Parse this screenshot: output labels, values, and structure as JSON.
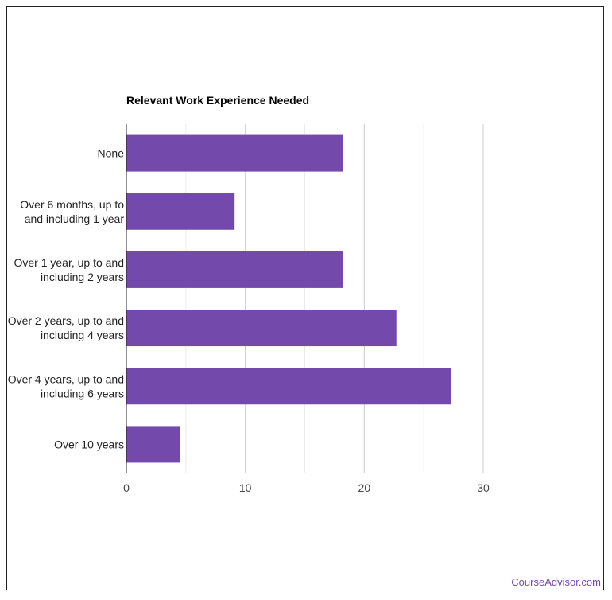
{
  "chart_data": {
    "type": "bar",
    "orientation": "horizontal",
    "title": "Relevant Work Experience Needed",
    "categories": [
      [
        "None"
      ],
      [
        "Over 6 months, up to",
        "and including 1 year"
      ],
      [
        "Over 1 year, up to and",
        "including 2 years"
      ],
      [
        "Over 2 years, up to and",
        "including 4 years"
      ],
      [
        "Over 4 years, up to and",
        "including 6 years"
      ],
      [
        "Over 10 years"
      ]
    ],
    "values": [
      18.2,
      9.1,
      18.2,
      22.7,
      27.3,
      4.5
    ],
    "xlabel": "",
    "ylabel": "",
    "xlim": [
      0,
      30
    ],
    "xticks": [
      "0",
      "10",
      "20",
      "30"
    ],
    "grid": true,
    "bar_color": "#7349ac"
  },
  "credit": "CourseAdvisor.com"
}
